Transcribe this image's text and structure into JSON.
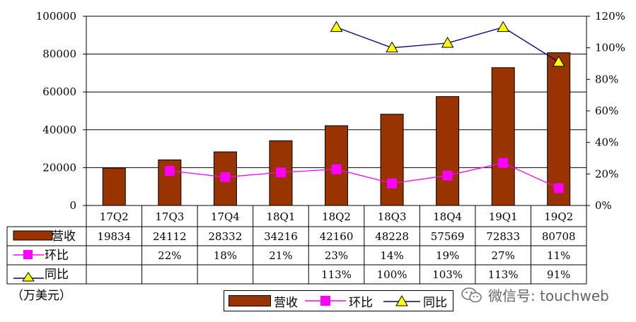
{
  "chart_data": {
    "type": "bar",
    "categories": [
      "17Q2",
      "17Q3",
      "17Q4",
      "18Q1",
      "18Q2",
      "18Q3",
      "18Q4",
      "19Q1",
      "19Q2"
    ],
    "series": [
      {
        "name": "营收",
        "type": "bar",
        "axis": "left",
        "color": "#993300",
        "values": [
          19834,
          24112,
          28332,
          34216,
          42160,
          48228,
          57569,
          72833,
          80708
        ],
        "labels": [
          "19834",
          "24112",
          "28332",
          "34216",
          "42160",
          "48228",
          "57569",
          "72833",
          "80708"
        ]
      },
      {
        "name": "环比",
        "type": "line",
        "axis": "right",
        "color": "#FF00FF",
        "marker": "square",
        "values": [
          null,
          22,
          18,
          21,
          23,
          14,
          19,
          27,
          11
        ],
        "labels": [
          "",
          "22%",
          "18%",
          "21%",
          "23%",
          "14%",
          "19%",
          "27%",
          "11%"
        ]
      },
      {
        "name": "同比",
        "type": "line",
        "axis": "right",
        "color": "#000080",
        "marker": "triangle",
        "marker_color": "#FFFF00",
        "values": [
          null,
          null,
          null,
          null,
          113,
          100,
          103,
          113,
          91
        ],
        "labels": [
          "",
          "",
          "",
          "",
          "113%",
          "100%",
          "103%",
          "113%",
          "91%"
        ]
      }
    ],
    "ylim_left": [
      0,
      100000
    ],
    "ylim_right": [
      0,
      120
    ],
    "yticks_left": [
      "0",
      "20000",
      "40000",
      "60000",
      "80000",
      "100000"
    ],
    "yticks_right": [
      "0%",
      "20%",
      "40%",
      "60%",
      "80%",
      "100%",
      "120%"
    ],
    "grid": true,
    "data_table": true,
    "legend_position": "bottom-center",
    "unit_note": "（万美元）"
  },
  "legend": {
    "items": [
      "营收",
      "环比",
      "同比"
    ]
  },
  "watermark": {
    "text": "微信号: touchweb",
    "icon": "wechat-icon"
  }
}
